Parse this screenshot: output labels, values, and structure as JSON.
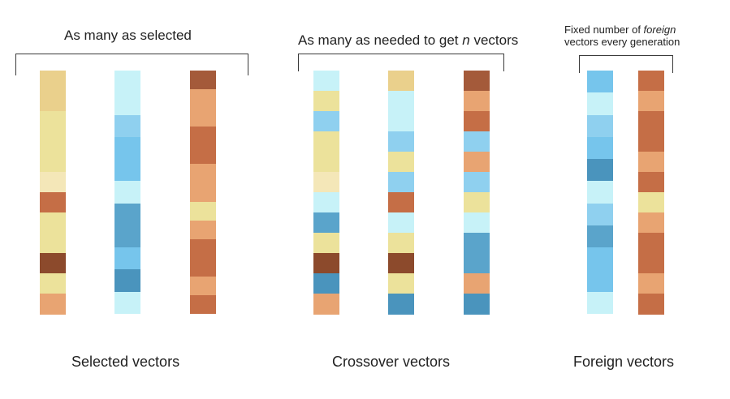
{
  "colors": {
    "lightyellow": "#f4e7b8",
    "yellow": "#ece29b",
    "sand": "#ead08c",
    "orange": "#e8a472",
    "rust": "#c56e46",
    "brown": "#a45a3a",
    "darkbrown": "#8c4a2c",
    "lightcyan": "#c7f2f8",
    "lightblue": "#8fd0ef",
    "skyblue": "#76c5ec",
    "blue": "#5aa4cb",
    "steelblue": "#4a94bd"
  },
  "groups": [
    {
      "top_label": "As many as selected",
      "bottom_label": "Selected vectors",
      "vectors": [
        [
          "sand",
          "sand",
          "yellow",
          "yellow",
          "yellow",
          "lightyellow",
          "rust",
          "yellow",
          "yellow",
          "darkbrown",
          "yellow",
          "orange"
        ],
        [
          "lightcyan",
          "lightcyan",
          "lightblue",
          "skyblue",
          "skyblue",
          "lightcyan",
          "blue",
          "blue",
          "skyblue",
          "steelblue",
          "lightcyan"
        ],
        [
          "brown",
          "orange",
          "orange",
          "rust",
          "rust",
          "orange",
          "orange",
          "yellow",
          "orange",
          "rust",
          "rust",
          "orange",
          "rust"
        ]
      ]
    },
    {
      "top_label_pre": "As many as needed to get ",
      "top_label_em": "n",
      "top_label_post": " vectors",
      "bottom_label": "Crossover vectors",
      "vectors": [
        [
          "lightcyan",
          "yellow",
          "lightblue",
          "yellow",
          "yellow",
          "lightyellow",
          "lightcyan",
          "blue",
          "yellow",
          "darkbrown",
          "steelblue",
          "orange"
        ],
        [
          "sand",
          "lightcyan",
          "lightcyan",
          "lightblue",
          "yellow",
          "lightblue",
          "rust",
          "lightcyan",
          "yellow",
          "darkbrown",
          "yellow",
          "steelblue"
        ],
        [
          "brown",
          "orange",
          "rust",
          "lightblue",
          "orange",
          "lightblue",
          "yellow",
          "lightcyan",
          "blue",
          "blue",
          "orange",
          "steelblue"
        ]
      ]
    },
    {
      "top_label_line1_pre": "Fixed number of ",
      "top_label_line1_em": "foreign",
      "top_label_line2": "vectors every generation",
      "bottom_label": "Foreign vectors",
      "vectors": [
        [
          "skyblue",
          "lightcyan",
          "lightblue",
          "skyblue",
          "steelblue",
          "lightcyan",
          "lightblue",
          "blue",
          "skyblue",
          "skyblue",
          "lightcyan"
        ],
        [
          "rust",
          "orange",
          "rust",
          "rust",
          "orange",
          "rust",
          "yellow",
          "orange",
          "rust",
          "rust",
          "orange",
          "rust"
        ]
      ]
    }
  ]
}
